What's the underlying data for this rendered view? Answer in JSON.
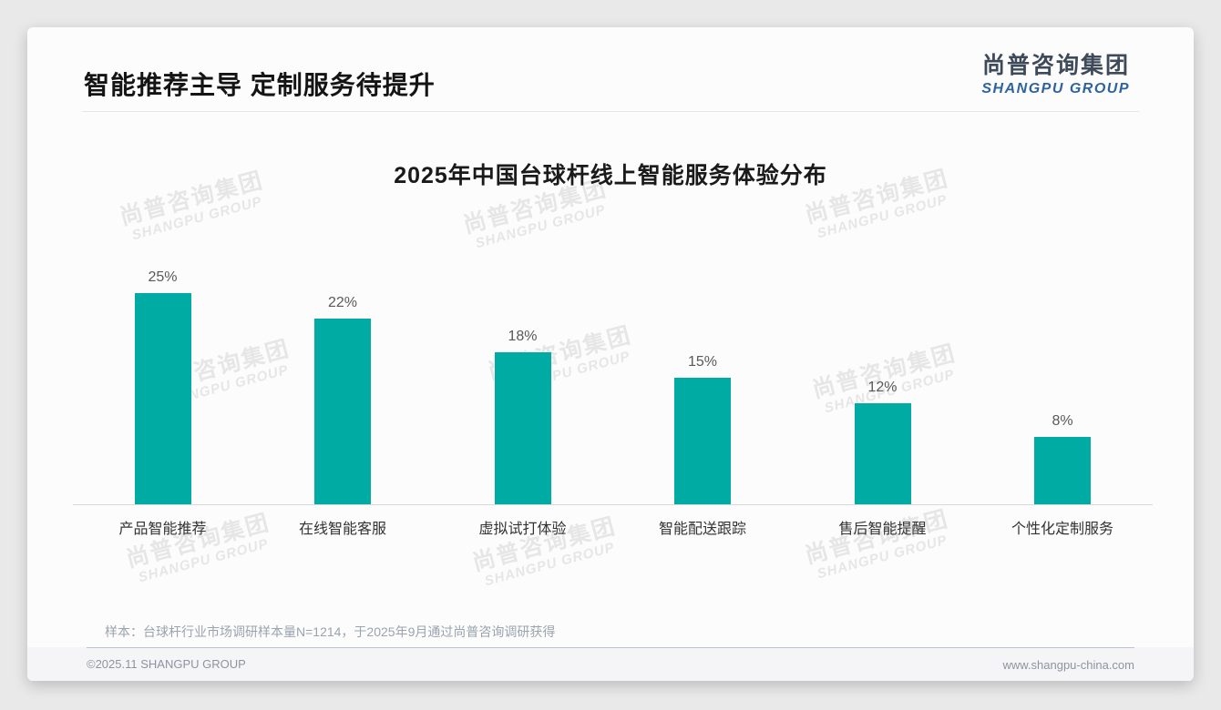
{
  "header": {
    "title": "智能推荐主导 定制服务待提升"
  },
  "logo": {
    "cn": "尚普咨询集团",
    "en": "SHANGPU GROUP"
  },
  "watermark": {
    "line1": "尚普咨询集团",
    "line2": "SHANGPU GROUP"
  },
  "chart_data": {
    "type": "bar",
    "title": "2025年中国台球杆线上智能服务体验分布",
    "categories": [
      "产品智能推荐",
      "在线智能客服",
      "虚拟试打体验",
      "智能配送跟踪",
      "售后智能提醒",
      "个性化定制服务"
    ],
    "values": [
      25,
      22,
      18,
      15,
      12,
      8
    ],
    "value_labels": [
      "25%",
      "22%",
      "18%",
      "15%",
      "12%",
      "8%"
    ],
    "unit": "%",
    "bar_color": "#00ABA4",
    "ylim": [
      0,
      27
    ],
    "grid": false,
    "legend": "none",
    "xlabel": "",
    "ylabel": ""
  },
  "note": "样本：台球杆行业市场调研样本量N=1214，于2025年9月通过尚普咨询调研获得",
  "footer": {
    "left": "©2025.11 SHANGPU GROUP",
    "right": "www.shangpu-china.com"
  }
}
